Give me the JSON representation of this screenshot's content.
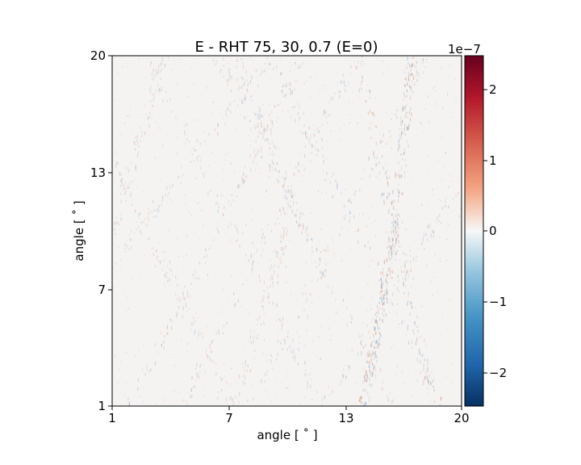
{
  "chart_data": {
    "type": "heatmap",
    "title": "E - RHT 75, 30, 0.7 (E=0)",
    "xlabel": "angle [$^\\circ$]",
    "xlabel_display": "angle [ ˚ ]",
    "ylabel_display": "angle [ ˚ ]",
    "xlim": [
      1,
      20
    ],
    "ylim": [
      1,
      20
    ],
    "x_ticks": [
      "1",
      "7",
      "13",
      "20"
    ],
    "y_ticks": [
      "1",
      "7",
      "13",
      "20"
    ],
    "colorbar": {
      "colormap": "RdBu_r",
      "range": [
        -2.5e-07,
        2.5e-07
      ],
      "ticks": [
        "−2",
        "−1",
        "0",
        "1",
        "2"
      ],
      "tick_values": [
        -2,
        -1,
        0,
        1,
        2
      ],
      "offset_text": "1e−7",
      "colors": {
        "min": "#053061",
        "low": "#4393c3",
        "mid": "#f7f7f7",
        "high": "#d6604d",
        "max": "#67001f"
      }
    },
    "grid": false,
    "texture": "near-zero background with fine oscillating stripes forming diagonal crossing bands"
  }
}
